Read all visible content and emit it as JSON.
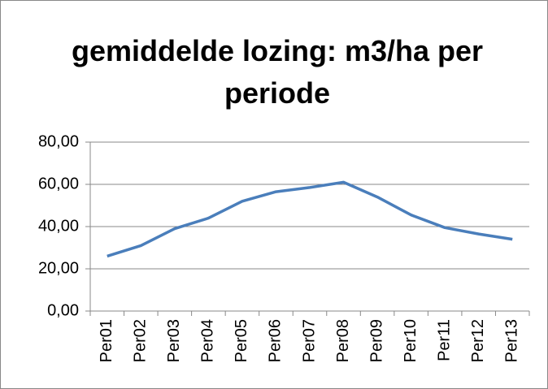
{
  "chart_data": {
    "type": "line",
    "title": "gemiddelde lozing: m3/ha per periode",
    "categories": [
      "Per01",
      "Per02",
      "Per03",
      "Per04",
      "Per05",
      "Per06",
      "Per07",
      "Per08",
      "Per09",
      "Per10",
      "Per11",
      "Per12",
      "Per13"
    ],
    "values": [
      26,
      31,
      39,
      44,
      52,
      56.5,
      58.5,
      61,
      54,
      45.5,
      39.5,
      36.5,
      34
    ],
    "color": "#4a7ebb",
    "ylim": [
      0,
      80
    ],
    "yticks": [
      {
        "value": 0,
        "label": "0,00"
      },
      {
        "value": 20,
        "label": "20,00"
      },
      {
        "value": 40,
        "label": "40,00"
      },
      {
        "value": 60,
        "label": "60,00"
      },
      {
        "value": 80,
        "label": "80,00"
      }
    ],
    "grid": true
  }
}
